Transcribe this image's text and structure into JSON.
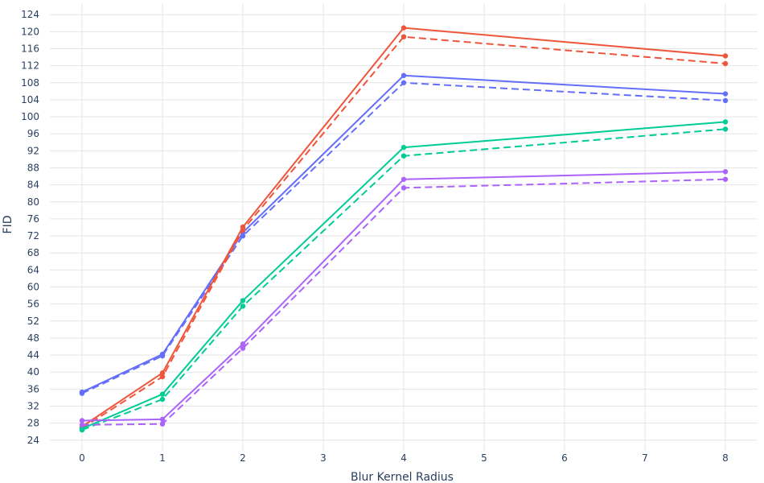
{
  "chart_data": {
    "type": "line",
    "xlabel": "Blur Kernel Radius",
    "ylabel": "FID",
    "x": [
      0,
      1,
      2,
      4,
      8
    ],
    "xlim": [
      -0.4,
      8.4
    ],
    "ylim": [
      21.5,
      126.5
    ],
    "xticks": [
      0,
      1,
      2,
      3,
      4,
      5,
      6,
      7,
      8
    ],
    "yticks": [
      24,
      28,
      32,
      36,
      40,
      44,
      48,
      52,
      56,
      60,
      64,
      68,
      72,
      76,
      80,
      84,
      88,
      92,
      96,
      100,
      104,
      108,
      112,
      116,
      120,
      124
    ],
    "grid": true,
    "legend": false,
    "series": [
      {
        "color": "#636efa",
        "dash": "solid",
        "values": [
          35.3,
          44.2,
          72.8,
          109.7,
          105.4
        ]
      },
      {
        "color": "#636efa",
        "dash": "dash",
        "values": [
          35.0,
          43.8,
          72.0,
          108.0,
          103.8
        ]
      },
      {
        "color": "#ef553b",
        "dash": "solid",
        "values": [
          27.2,
          39.8,
          74.1,
          120.9,
          114.3
        ]
      },
      {
        "color": "#ef553b",
        "dash": "dash",
        "values": [
          26.8,
          38.9,
          73.4,
          118.8,
          112.5
        ]
      },
      {
        "color": "#00cc96",
        "dash": "solid",
        "values": [
          26.7,
          34.8,
          56.8,
          92.8,
          98.8
        ]
      },
      {
        "color": "#00cc96",
        "dash": "dash",
        "values": [
          26.4,
          33.6,
          55.5,
          90.8,
          97.1
        ]
      },
      {
        "color": "#ab63fa",
        "dash": "solid",
        "values": [
          28.6,
          28.9,
          46.6,
          85.3,
          87.1
        ]
      },
      {
        "color": "#ab63fa",
        "dash": "dash",
        "values": [
          27.6,
          27.8,
          45.6,
          83.3,
          85.3
        ]
      }
    ]
  }
}
